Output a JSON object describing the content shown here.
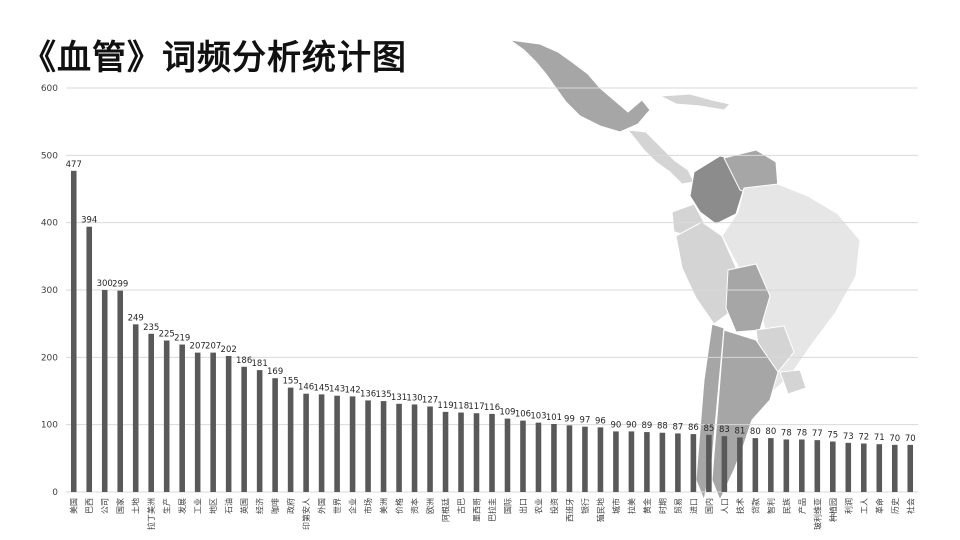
{
  "title": "《血管》词频分析统计图",
  "colors": {
    "bar": "#595959",
    "grid": "#d9d9d9",
    "map_dark": "#8c8c8c",
    "map_mid": "#a6a6a6",
    "map_light": "#d4d4d4",
    "map_lighter": "#e6e6e6"
  },
  "background_image": "latin-america-map",
  "chart_data": {
    "type": "bar",
    "ylim": [
      0,
      600
    ],
    "yticks": [
      0,
      100,
      200,
      300,
      400,
      500,
      600
    ],
    "grid": true,
    "categories": [
      "美国",
      "巴西",
      "公司",
      "国家",
      "土地",
      "拉丁美洲",
      "生产",
      "发展",
      "工业",
      "地区",
      "石油",
      "英国",
      "经济",
      "咖啡",
      "政府",
      "印第安人",
      "外国",
      "世界",
      "企业",
      "市场",
      "美洲",
      "价格",
      "资本",
      "欧洲",
      "阿根廷",
      "古巴",
      "墨西哥",
      "巴拉圭",
      "国际",
      "出口",
      "农业",
      "投资",
      "西班牙",
      "银行",
      "殖民地",
      "城市",
      "拉美",
      "黄金",
      "时期",
      "贸易",
      "进口",
      "国内",
      "人口",
      "技术",
      "贷款",
      "智利",
      "民族",
      "产品",
      "玻利维亚",
      "种植园",
      "利润",
      "工人",
      "革命",
      "历史",
      "社会"
    ],
    "values": [
      477,
      394,
      300,
      299,
      249,
      235,
      225,
      219,
      207,
      207,
      202,
      186,
      181,
      169,
      155,
      146,
      145,
      143,
      142,
      136,
      135,
      131,
      130,
      127,
      119,
      118,
      117,
      116,
      109,
      106,
      103,
      101,
      99,
      97,
      96,
      90,
      90,
      89,
      88,
      87,
      86,
      85,
      83,
      81,
      80,
      80,
      78,
      78,
      77,
      75,
      73,
      72,
      71,
      70,
      70
    ]
  }
}
